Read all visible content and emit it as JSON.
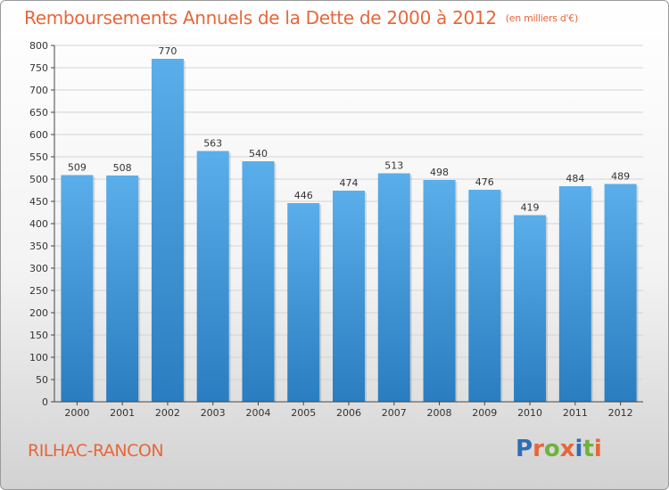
{
  "header": {
    "title": "Remboursements Annuels de la Dette de 2000 à 2012",
    "unit": "(en milliers d'€)"
  },
  "footer": {
    "city": "RILHAC-RANCON",
    "logo": "Proxiti"
  },
  "colors": {
    "title": "#e8663a",
    "bar_light": "#5aaeea",
    "bar_dark": "#2a7dc0",
    "grid": "#d4d4d4",
    "axis": "#444444"
  },
  "chart_data": {
    "type": "bar",
    "title": "Remboursements Annuels de la Dette de 2000 à 2012",
    "subtitle": "(en milliers d'€)",
    "categories": [
      "2000",
      "2001",
      "2002",
      "2003",
      "2004",
      "2005",
      "2006",
      "2007",
      "2008",
      "2009",
      "2010",
      "2011",
      "2012"
    ],
    "values": [
      509,
      508,
      770,
      563,
      540,
      446,
      474,
      513,
      498,
      476,
      419,
      484,
      489
    ],
    "ylim": [
      0,
      800
    ],
    "yticks": [
      0,
      50,
      100,
      150,
      200,
      250,
      300,
      350,
      400,
      450,
      500,
      550,
      600,
      650,
      700,
      750,
      800
    ],
    "grid": true,
    "data_labels": true,
    "legend": "none"
  }
}
